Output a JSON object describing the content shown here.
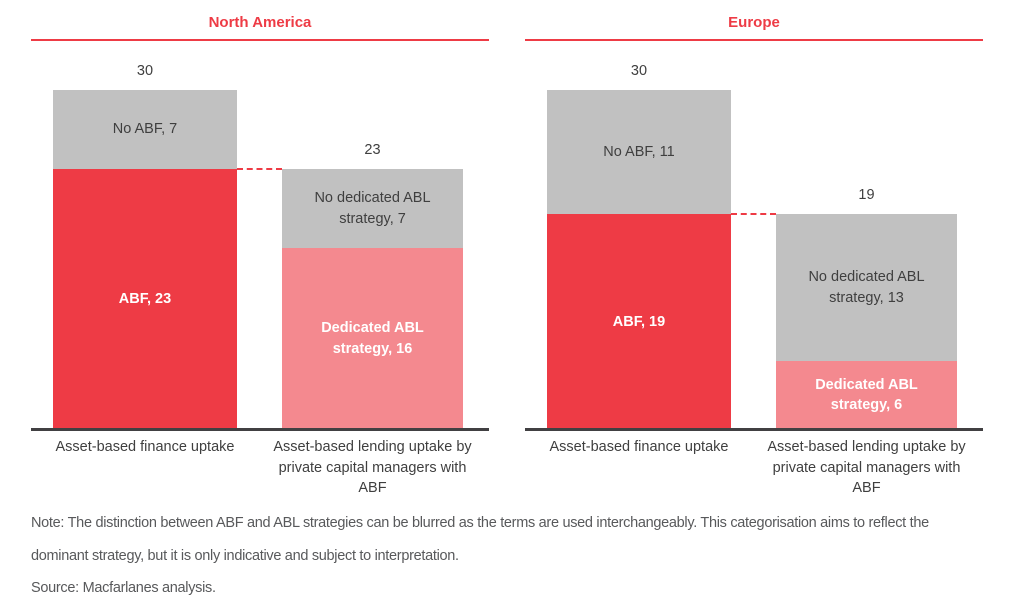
{
  "colors": {
    "red": "#EE3B45",
    "pink": "#F4898F",
    "gray": "#C1C1C1",
    "axis_line": "#414042",
    "label_text": "#3F3F3F",
    "note_text": "#58595B"
  },
  "chart_data": [
    {
      "type": "bar",
      "title": "North America",
      "categories": [
        "Asset-based finance uptake",
        "Asset-based lending uptake by private capital managers with ABF"
      ],
      "ylim": [
        0,
        30
      ],
      "grid": false,
      "legend": "none",
      "bars": [
        {
          "total": 30,
          "segments": [
            {
              "name": "No ABF",
              "label": "No ABF, 7",
              "value": 7,
              "color": "gray"
            },
            {
              "name": "ABF",
              "label": "ABF, 23",
              "value": 23,
              "color": "red"
            }
          ]
        },
        {
          "total": 23,
          "segments": [
            {
              "name": "No dedicated ABL strategy",
              "label": "No dedicated ABL strategy, 7",
              "value": 7,
              "color": "gray"
            },
            {
              "name": "Dedicated ABL strategy",
              "label": "Dedicated ABL strategy, 16",
              "value": 16,
              "color": "pink"
            }
          ]
        }
      ],
      "connector_value": 23
    },
    {
      "type": "bar",
      "title": "Europe",
      "categories": [
        "Asset-based finance uptake",
        "Asset-based lending uptake by private capital managers with ABF"
      ],
      "ylim": [
        0,
        30
      ],
      "grid": false,
      "legend": "none",
      "bars": [
        {
          "total": 30,
          "segments": [
            {
              "name": "No ABF",
              "label": "No ABF, 11",
              "value": 11,
              "color": "gray"
            },
            {
              "name": "ABF",
              "label": "ABF, 19",
              "value": 19,
              "color": "red"
            }
          ]
        },
        {
          "total": 19,
          "segments": [
            {
              "name": "No dedicated ABL strategy",
              "label": "No dedicated ABL strategy, 13",
              "value": 13,
              "color": "gray"
            },
            {
              "name": "Dedicated ABL strategy",
              "label": "Dedicated ABL strategy, 6",
              "value": 6,
              "color": "pink"
            }
          ]
        }
      ],
      "connector_value": 19
    }
  ],
  "footer": {
    "note": "Note: The distinction between ABF and ABL strategies can be blurred as the terms are used interchangeably. This categorisation aims to reflect the dominant strategy, but it is only indicative and subject to interpretation.",
    "source": "Source: Macfarlanes analysis."
  }
}
